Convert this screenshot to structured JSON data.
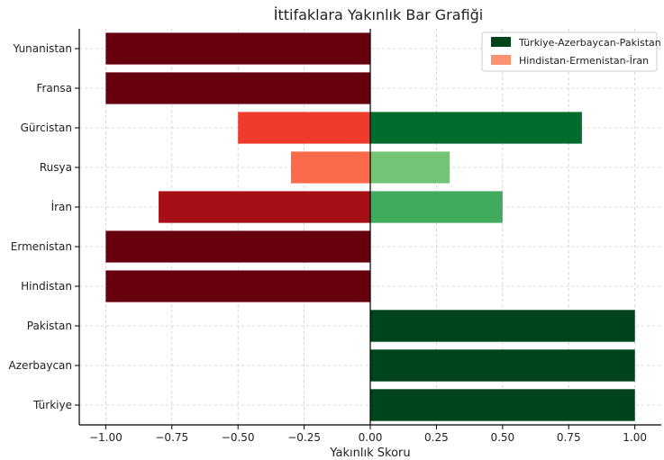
{
  "chart_data": {
    "type": "bar",
    "orientation": "horizontal",
    "title": "İttifaklara Yakınlık Bar Grafiği",
    "xlabel": "Yakınlık Skoru",
    "ylabel": "",
    "xlim": [
      -1.1,
      1.1
    ],
    "xticks": [
      -1.0,
      -0.75,
      -0.5,
      -0.25,
      0.0,
      0.25,
      0.5,
      0.75,
      1.0
    ],
    "xtick_labels": [
      "−1.00",
      "−0.75",
      "−0.50",
      "−0.25",
      "0.00",
      "0.25",
      "0.50",
      "0.75",
      "1.00"
    ],
    "grid": true,
    "legend_position": "top-right",
    "categories": [
      "Yunanistan",
      "Fransa",
      "Gürcistan",
      "Rusya",
      "İran",
      "Ermenistan",
      "Hindistan",
      "Pakistan",
      "Azerbaycan",
      "Türkiye"
    ],
    "values": [
      -1.0,
      -1.0,
      -0.5,
      -0.3,
      -0.8,
      -1.0,
      -1.0,
      1.0,
      1.0,
      1.0
    ],
    "values_positive": [
      0,
      0,
      0.8,
      0.3,
      0.5,
      0,
      0,
      1.0,
      1.0,
      1.0
    ],
    "colors": [
      "#67000d",
      "#67000d",
      "#ef3b2c",
      "#fb6a4a",
      "#a50f15",
      "#67000d",
      "#67000d",
      "#00441b",
      "#00441b",
      "#00441b"
    ],
    "colors_positive": [
      "#00441b",
      "#00441b",
      "#006d2c",
      "#74c476",
      "#41ab5d",
      "#00441b",
      "#00441b",
      "#00441b",
      "#00441b",
      "#00441b"
    ],
    "series": [
      {
        "name": "Türkiye-Azerbaycan-Pakistan",
        "color": "#00441b"
      },
      {
        "name": "Hindistan-Ermenistan-İran",
        "color": "#fc9272"
      }
    ]
  }
}
